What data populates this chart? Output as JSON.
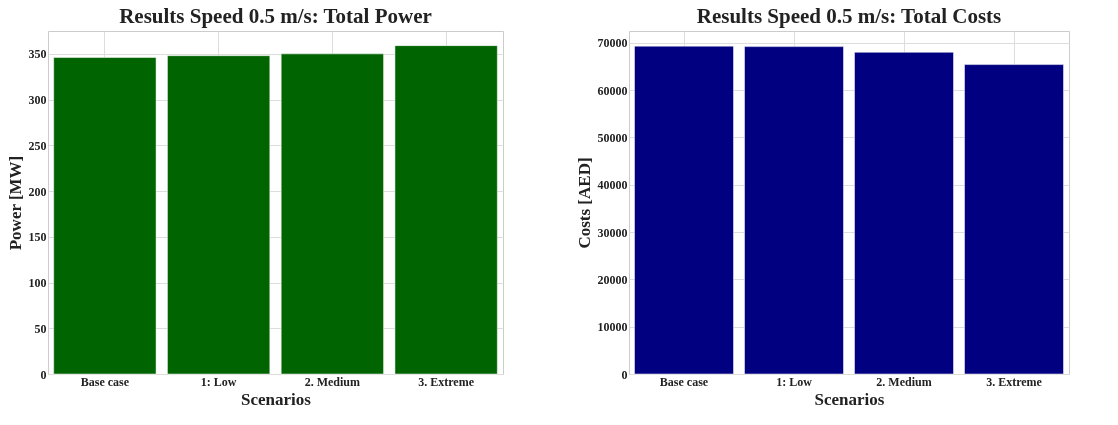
{
  "chart_data": [
    {
      "type": "bar",
      "title": "Results Speed 0.5 m/s: Total Power",
      "xlabel": "Scenarios",
      "ylabel": "Power [MW]",
      "categories": [
        "Base case",
        "1: Low",
        "2. Medium",
        "3. Extreme"
      ],
      "series": [
        {
          "color": "#006400",
          "values": [
            346,
            348,
            350,
            359
          ]
        }
      ],
      "ylim": [
        0,
        375
      ],
      "yticks": [
        0,
        50,
        100,
        150,
        200,
        250,
        300,
        350
      ],
      "grid": true
    },
    {
      "type": "bar",
      "title": "Results Speed 0.5 m/s: Total Costs",
      "xlabel": "Scenarios",
      "ylabel": "Costs [AED]",
      "categories": [
        "Base case",
        "1: Low",
        "2. Medium",
        "3. Extreme"
      ],
      "series": [
        {
          "color": "#000080",
          "values": [
            69300,
            69200,
            68000,
            65400
          ]
        }
      ],
      "ylim": [
        0,
        72500
      ],
      "yticks": [
        0,
        10000,
        20000,
        30000,
        40000,
        50000,
        60000,
        70000
      ],
      "grid": true
    }
  ]
}
